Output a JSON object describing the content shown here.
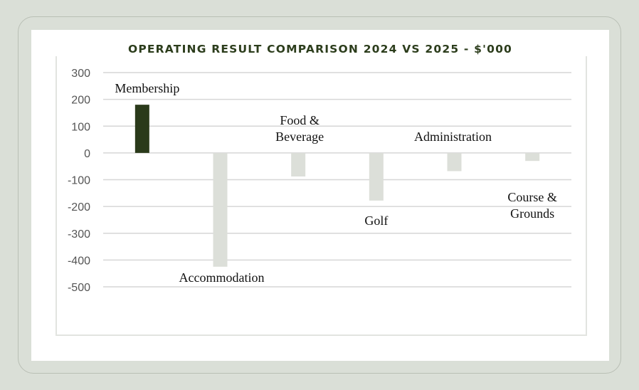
{
  "chart_data": {
    "type": "bar",
    "title": "OPERATING RESULT COMPARISON 2024 VS 2025 - $'000",
    "xlabel": "",
    "ylabel": "",
    "ylim": [
      -500,
      300
    ],
    "yticks": [
      300,
      200,
      100,
      0,
      -100,
      -200,
      -300,
      -400,
      -500
    ],
    "grid": true,
    "categories": [
      [
        "Membership"
      ],
      [
        "Accommodation"
      ],
      [
        "Food &",
        "Beverage"
      ],
      [
        "Golf"
      ],
      [
        "Administration"
      ],
      [
        "Course &",
        "Grounds"
      ]
    ],
    "values": [
      180,
      -425,
      -88,
      -178,
      -68,
      -30
    ],
    "colors": {
      "positive": "#2a3a1a",
      "negative": "#dcdfd9",
      "grid": "#d6d6d6",
      "title": "#2c3d1c"
    }
  }
}
